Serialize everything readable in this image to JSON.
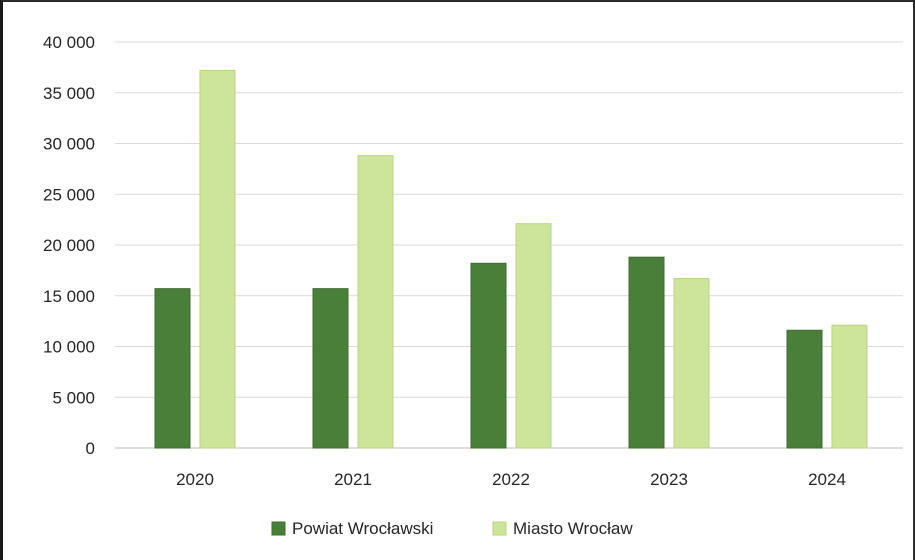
{
  "chart_data": {
    "type": "bar",
    "categories": [
      "2020",
      "2021",
      "2022",
      "2023",
      "2024"
    ],
    "series": [
      {
        "name": "Powiat Wrocławski",
        "values": [
          15700,
          15700,
          18200,
          18800,
          11600
        ],
        "color": "#4a7f3a"
      },
      {
        "name": "Miasto Wrocław",
        "values": [
          37200,
          28800,
          22100,
          16700,
          12100
        ],
        "color": "#cde59a"
      }
    ],
    "yticks": [
      "0",
      "5 000",
      "10 000",
      "15 000",
      "20 000",
      "25 000",
      "30 000",
      "35 000",
      "40 000"
    ],
    "ylim": [
      0,
      40000
    ],
    "grid": true,
    "legend": "bottom",
    "title": "",
    "xlabel": "",
    "ylabel": ""
  }
}
